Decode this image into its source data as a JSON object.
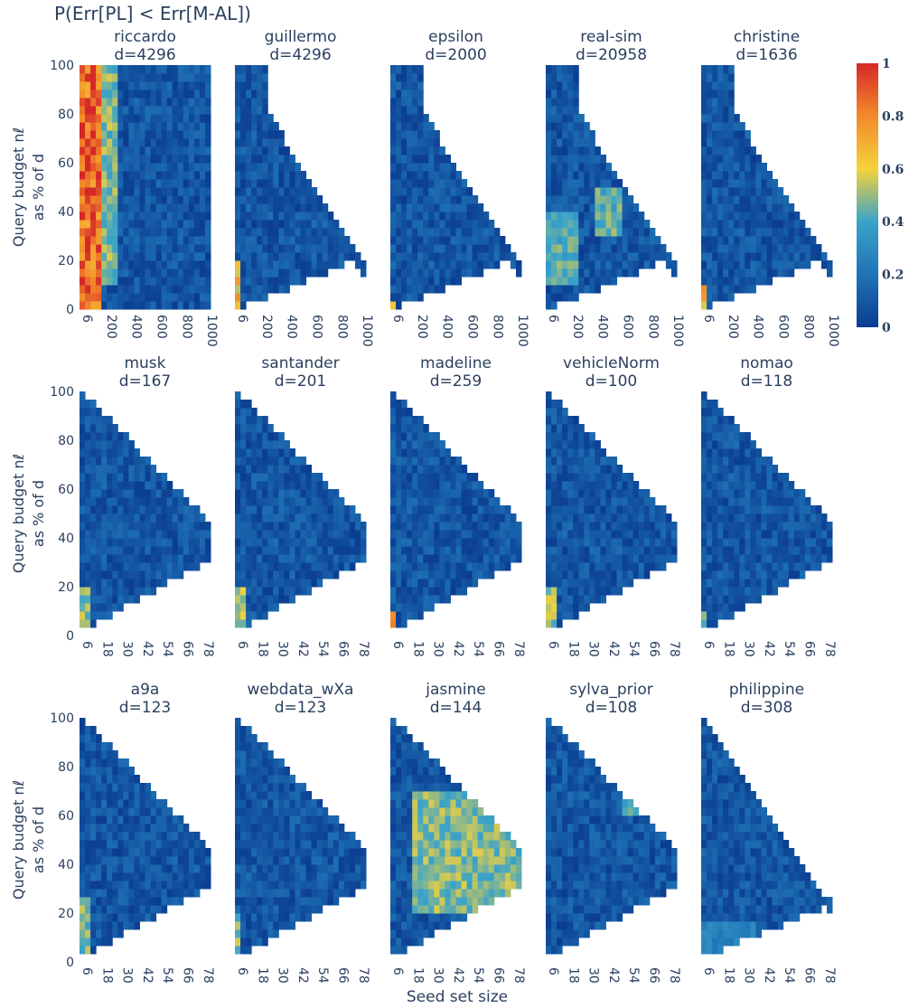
{
  "title": "P(Err[PL] < Err[M-AL])",
  "xlabel": "Seed set size",
  "ylabel_line1": "Query budget nℓ",
  "ylabel_line2": "as % of d",
  "colorbar": {
    "ticks": [
      "0",
      "0.2",
      "0.4",
      "0.6",
      "0.8",
      "1"
    ],
    "tick_values": [
      0,
      0.2,
      0.4,
      0.6,
      0.8,
      1
    ],
    "colorscale": [
      "#0b3d91",
      "#1f73b6",
      "#3aa3c9",
      "#f5d23a",
      "#f28a2b",
      "#d62728"
    ]
  },
  "chart_data": {
    "type": "heatmap",
    "panels": [
      {
        "name": "riccardo",
        "d_label": "d=4296",
        "row": 0,
        "xticks": [
          "6",
          "200",
          "400",
          "600",
          "800",
          "1000"
        ],
        "xmax": 1050,
        "boundary": [
          [
            0,
            100
          ],
          [
            200,
            100
          ],
          [
            400,
            100
          ],
          [
            600,
            100
          ],
          [
            800,
            100
          ],
          [
            1000,
            100
          ]
        ],
        "hotspots": [
          {
            "x0": 6,
            "x1": 200,
            "y0": 0,
            "y1": 100,
            "v": 1.0
          },
          {
            "x0": 200,
            "x1": 300,
            "y0": 10,
            "y1": 100,
            "v": 0.55
          }
        ]
      },
      {
        "name": "guillermo",
        "d_label": "d=4296",
        "row": 0,
        "xticks": [
          "6",
          "200",
          "400",
          "600",
          "800",
          "1000"
        ],
        "xmax": 1050,
        "hotspots": [
          {
            "x0": 6,
            "x1": 60,
            "y0": 0,
            "y1": 20,
            "v": 0.75
          }
        ]
      },
      {
        "name": "epsilon",
        "d_label": "d=2000",
        "row": 0,
        "xticks": [
          "6",
          "200",
          "400",
          "600",
          "800",
          "1000"
        ],
        "xmax": 1050,
        "hotspots": [
          {
            "x0": 6,
            "x1": 60,
            "y0": 0,
            "y1": 4,
            "v": 0.8
          }
        ]
      },
      {
        "name": "real-sim",
        "d_label": "d=20958",
        "row": 0,
        "xticks": [
          "6",
          "200",
          "400",
          "600",
          "800",
          "1000"
        ],
        "xmax": 1050,
        "hotspots": [
          {
            "x0": 6,
            "x1": 250,
            "y0": 10,
            "y1": 40,
            "v": 0.5
          },
          {
            "x0": 400,
            "x1": 600,
            "y0": 30,
            "y1": 50,
            "v": 0.5
          }
        ]
      },
      {
        "name": "christine",
        "d_label": "d=1636",
        "row": 0,
        "xticks": [
          "6",
          "200",
          "400",
          "600",
          "800",
          "1000"
        ],
        "xmax": 1050,
        "hotspots": [
          {
            "x0": 6,
            "x1": 60,
            "y0": 0,
            "y1": 10,
            "v": 0.8
          }
        ]
      },
      {
        "name": "musk",
        "d_label": "d=167",
        "row": 1,
        "xticks": [
          "6",
          "18",
          "30",
          "42",
          "54",
          "66",
          "78"
        ],
        "xmax": 84,
        "hotspots": [
          {
            "x0": 6,
            "x1": 12,
            "y0": 5,
            "y1": 20,
            "v": 0.55
          }
        ]
      },
      {
        "name": "santander",
        "d_label": "d=201",
        "row": 1,
        "xticks": [
          "6",
          "18",
          "30",
          "42",
          "54",
          "66",
          "78"
        ],
        "xmax": 84,
        "hotspots": [
          {
            "x0": 6,
            "x1": 12,
            "y0": 0,
            "y1": 20,
            "v": 0.6
          }
        ]
      },
      {
        "name": "madeline",
        "d_label": "d=259",
        "row": 1,
        "xticks": [
          "6",
          "18",
          "30",
          "42",
          "54",
          "66",
          "78"
        ],
        "xmax": 84,
        "hotspots": [
          {
            "x0": 6,
            "x1": 10,
            "y0": 0,
            "y1": 10,
            "v": 0.85
          }
        ]
      },
      {
        "name": "vehicleNorm",
        "d_label": "d=100",
        "row": 1,
        "xticks": [
          "6",
          "18",
          "30",
          "42",
          "54",
          "66",
          "78"
        ],
        "xmax": 84,
        "hotspots": [
          {
            "x0": 6,
            "x1": 12,
            "y0": 0,
            "y1": 20,
            "v": 0.6
          }
        ]
      },
      {
        "name": "nomao",
        "d_label": "d=118",
        "row": 1,
        "xticks": [
          "6",
          "18",
          "30",
          "42",
          "54",
          "66",
          "78"
        ],
        "xmax": 84,
        "hotspots": [
          {
            "x0": 6,
            "x1": 10,
            "y0": 0,
            "y1": 10,
            "v": 0.6
          }
        ]
      },
      {
        "name": "a9a",
        "d_label": "d=123",
        "row": 2,
        "xticks": [
          "6",
          "18",
          "30",
          "42",
          "54",
          "66",
          "78"
        ],
        "xmax": 84,
        "hotspots": [
          {
            "x0": 6,
            "x1": 12,
            "y0": 0,
            "y1": 28,
            "v": 0.55
          }
        ]
      },
      {
        "name": "webdata_wXa",
        "d_label": "d=123",
        "row": 2,
        "xticks": [
          "6",
          "18",
          "30",
          "42",
          "54",
          "66",
          "78"
        ],
        "xmax": 84,
        "hotspots": [
          {
            "x0": 6,
            "x1": 10,
            "y0": 5,
            "y1": 20,
            "v": 0.55
          }
        ]
      },
      {
        "name": "jasmine",
        "d_label": "d=144",
        "row": 2,
        "xticks": [
          "6",
          "18",
          "30",
          "42",
          "54",
          "66",
          "78"
        ],
        "xmax": 84,
        "hotspots": [
          {
            "x0": 20,
            "x1": 84,
            "y0": 20,
            "y1": 70,
            "v": 0.55
          }
        ]
      },
      {
        "name": "sylva_prior",
        "d_label": "d=108",
        "row": 2,
        "xticks": [
          "6",
          "18",
          "30",
          "42",
          "54",
          "66",
          "78"
        ],
        "xmax": 84,
        "hotspots": [
          {
            "x0": 50,
            "x1": 84,
            "y0": 60,
            "y1": 100,
            "v": 0.45
          }
        ]
      },
      {
        "name": "philippine",
        "d_label": "d=308",
        "row": 2,
        "xticks": [
          "6",
          "18",
          "30",
          "42",
          "54",
          "66",
          "78"
        ],
        "xmax": 84,
        "hotspots": [
          {
            "x0": 6,
            "x1": 40,
            "y0": 5,
            "y1": 15,
            "v": 0.3
          }
        ]
      }
    ],
    "y_ticks": [
      "0",
      "20",
      "40",
      "60",
      "80",
      "100"
    ],
    "ylim": [
      0,
      100
    ],
    "zlim": [
      0,
      1
    ]
  }
}
